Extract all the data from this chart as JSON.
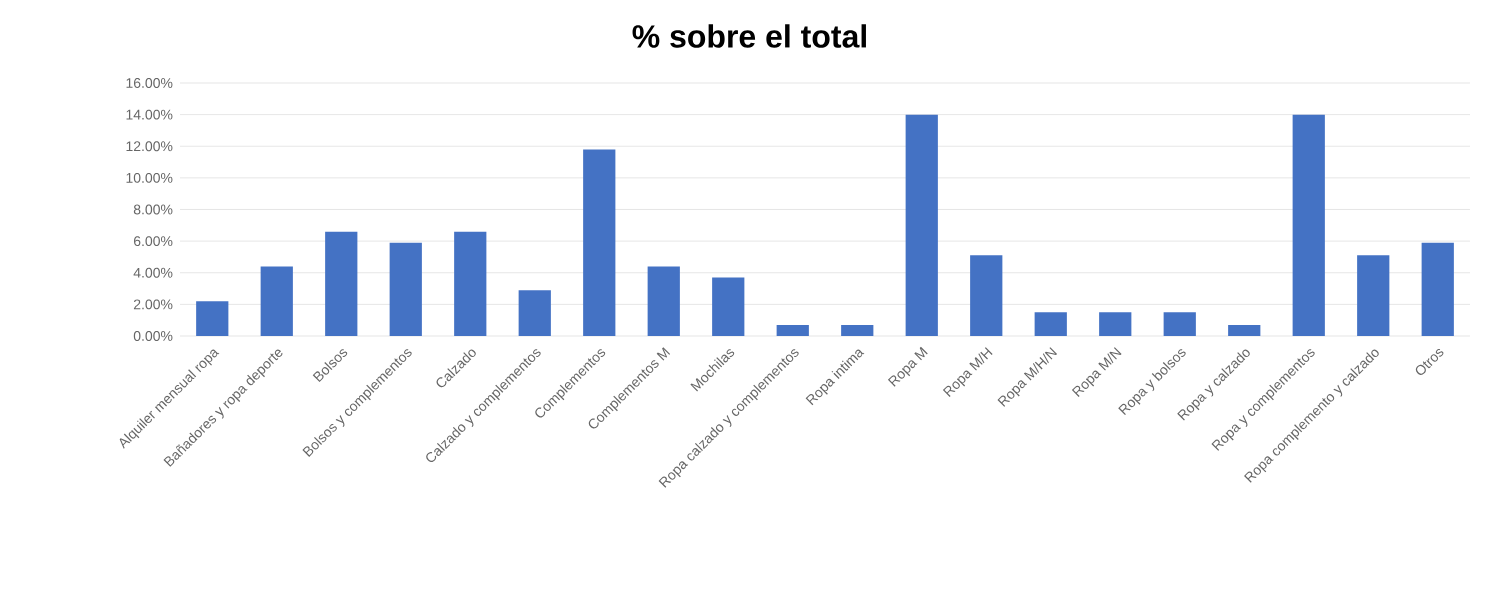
{
  "chart_data": {
    "type": "bar",
    "title": "% sobre el total",
    "categories": [
      "Alquiler mensual ropa",
      "Bañadores y ropa deporte",
      "Bolsos",
      "Bolsos y complementos",
      "Calzado",
      "Calzado y complementos",
      "Complementos",
      "Complementos M",
      "Mochilas",
      "Ropa calzado y complementos",
      "Ropa intima",
      "Ropa M",
      "Ropa M/H",
      "Ropa M/H/N",
      "Ropa M/N",
      "Ropa y bolsos",
      "Ropa y calzado",
      "Ropa y complementos",
      "Ropa complemento y calzado",
      "Otros"
    ],
    "values": [
      2.2,
      4.4,
      6.6,
      5.9,
      6.6,
      2.9,
      11.8,
      4.4,
      3.7,
      0.7,
      0.7,
      14.0,
      5.1,
      1.5,
      1.5,
      1.5,
      0.7,
      14.0,
      5.1,
      5.9
    ],
    "color": "#4472c4",
    "ylim": [
      0,
      16
    ],
    "yticks": [
      {
        "value": 0,
        "label": "0.00%"
      },
      {
        "value": 2,
        "label": "2.00%"
      },
      {
        "value": 4,
        "label": "4.00%"
      },
      {
        "value": 6,
        "label": "6.00%"
      },
      {
        "value": 8,
        "label": "8.00%"
      },
      {
        "value": 10,
        "label": "10.00%"
      },
      {
        "value": 12,
        "label": "12.00%"
      },
      {
        "value": 14,
        "label": "14.00%"
      },
      {
        "value": 16,
        "label": "16.00%"
      }
    ],
    "grid": "y"
  }
}
